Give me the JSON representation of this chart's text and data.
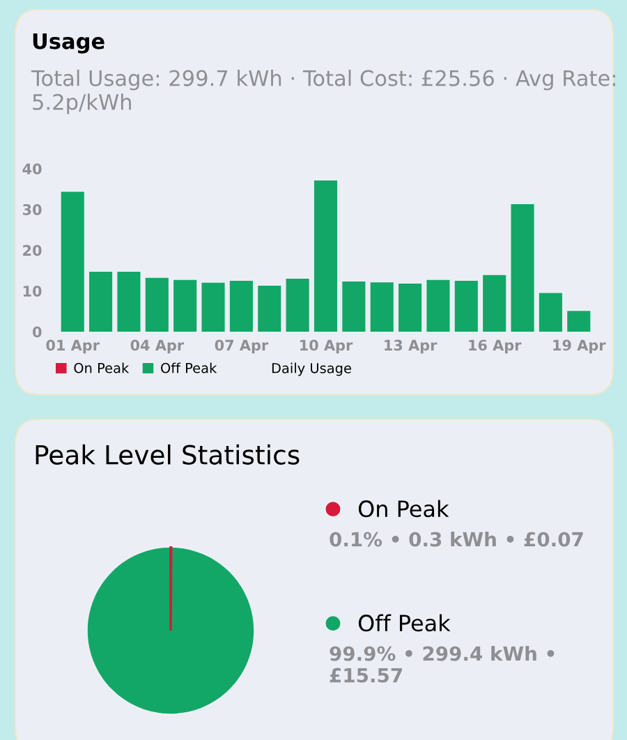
{
  "chart_data": [
    {
      "type": "bar",
      "title": "Usage",
      "subtitle": "Total Usage: 299.7 kWh · Total Cost: £25.56 · Avg Rate: 5.2p/kWh",
      "categories": [
        "01 Apr",
        null,
        null,
        "04 Apr",
        null,
        null,
        "07 Apr",
        null,
        null,
        "10 Apr",
        null,
        null,
        "13 Apr",
        null,
        null,
        "16 Apr",
        null,
        null,
        "19 Apr"
      ],
      "series": [
        {
          "name": "On Peak",
          "color": "#d7193a",
          "values": [
            0,
            0,
            0,
            0,
            0,
            0,
            0,
            0,
            0,
            0,
            0,
            0,
            0,
            0,
            0,
            0,
            0,
            0,
            0
          ]
        },
        {
          "name": "Off Peak",
          "color": "#12a766",
          "values": [
            34.3,
            14.7,
            14.7,
            13.2,
            12.7,
            12.0,
            12.5,
            11.3,
            13.0,
            37.1,
            12.3,
            12.1,
            11.8,
            12.7,
            12.5,
            13.9,
            31.3,
            9.5,
            5.1
          ]
        }
      ],
      "ylim": [
        0,
        40
      ],
      "yticks": [
        0,
        10,
        20,
        30,
        40
      ],
      "grid": false,
      "legend": "bottom",
      "annotations": [
        "Daily Usage"
      ]
    },
    {
      "type": "pie",
      "title": "Peak Level Statistics",
      "categories": [
        "On Peak",
        "Off Peak"
      ],
      "values": [
        0.1,
        99.9
      ],
      "colors": [
        "#d7193a",
        "#12a766"
      ],
      "legend": "right",
      "annotations": [
        "0.1% • 0.3 kWh • £0.07",
        "99.9% • 299.4 kWh • £15.57"
      ]
    }
  ]
}
